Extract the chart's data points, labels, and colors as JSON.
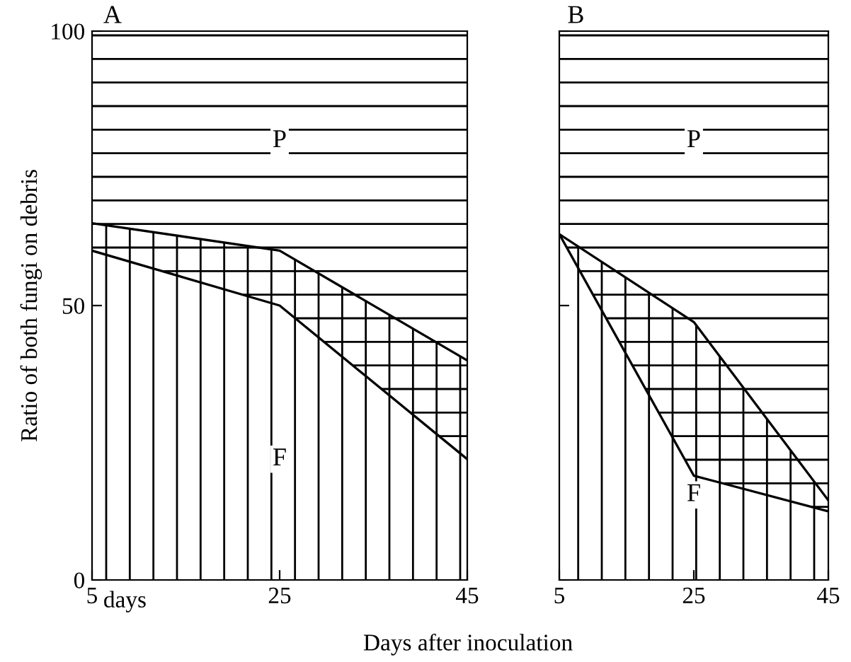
{
  "chart_data": [
    {
      "type": "area",
      "title": "A",
      "ylabel": "Ratio of both fungi on debris",
      "xlabel": "Days after inoculation",
      "x": [
        5,
        25,
        45
      ],
      "xlim": [
        5,
        45
      ],
      "xticks": [
        5,
        25,
        45
      ],
      "ylim": [
        0,
        100
      ],
      "yticks": [
        0,
        50,
        100
      ],
      "grid": false,
      "legend": false,
      "annotations": [
        "days",
        {
          "text": "P",
          "x": 25,
          "y": 80
        }
      ],
      "series": [
        {
          "name": "F",
          "color": "#000000",
          "values": [
            65,
            60,
            40
          ]
        },
        {
          "type": "line",
          "color": "#000000",
          "values": [
            60,
            50,
            22
          ],
          "lower": [
            60,
            50,
            22
          ],
          "upper": [
            100,
            100,
            100
          ]
        }
      ]
    },
    {
      "type": "area",
      "title": "B",
      "x": [
        5,
        25,
        45
      ],
      "xlim": [
        5,
        45
      ],
      "xticks": [
        5,
        25,
        45
      ],
      "ylim": [
        0,
        100
      ],
      "yticks": [
        0,
        50,
        100
      ],
      "tick_labels": "x",
      "grid": false,
      "legend": false,
      "annotations": [
        {
          "text": "P",
          "x": 25,
          "y": 80
        }
      ],
      "series": [
        {
          "name": "F",
          "color": "#000000",
          "values": [
            63,
            47,
            14.5
          ]
        },
        {
          "type": "line",
          "color": "#000000",
          "values": [
            63,
            19,
            12.5
          ],
          "lower": [
            63,
            19,
            12.5
          ],
          "upper": [
            100,
            100,
            100
          ]
        }
      ]
    }
  ]
}
